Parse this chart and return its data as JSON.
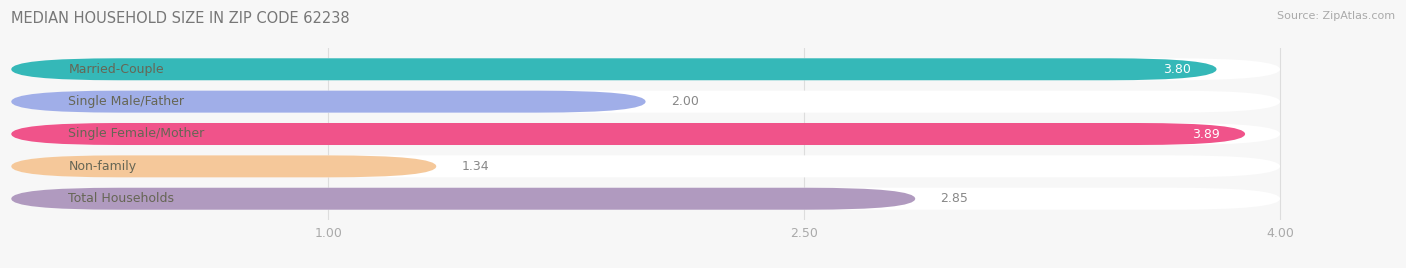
{
  "title": "MEDIAN HOUSEHOLD SIZE IN ZIP CODE 62238",
  "source": "Source: ZipAtlas.com",
  "categories": [
    "Married-Couple",
    "Single Male/Father",
    "Single Female/Mother",
    "Non-family",
    "Total Households"
  ],
  "values": [
    3.8,
    2.0,
    3.89,
    1.34,
    2.85
  ],
  "bar_colors": [
    "#35b8b8",
    "#a0aee8",
    "#f0538a",
    "#f5c89a",
    "#b09abf"
  ],
  "bar_bg_colors": [
    "#eeeeee",
    "#eeeeee",
    "#eeeeee",
    "#eeeeee",
    "#eeeeee"
  ],
  "xlim": [
    0,
    4.22
  ],
  "data_max": 4.0,
  "xticks": [
    1.0,
    2.5,
    4.0
  ],
  "xtick_labels": [
    "1.00",
    "2.50",
    "4.00"
  ],
  "background_color": "#f7f7f7",
  "bar_height": 0.68,
  "label_fontsize": 9,
  "value_fontsize": 9,
  "title_fontsize": 10.5,
  "source_fontsize": 8,
  "label_color": "#666655",
  "value_inside_color": "white",
  "value_outside_color": "#888888"
}
